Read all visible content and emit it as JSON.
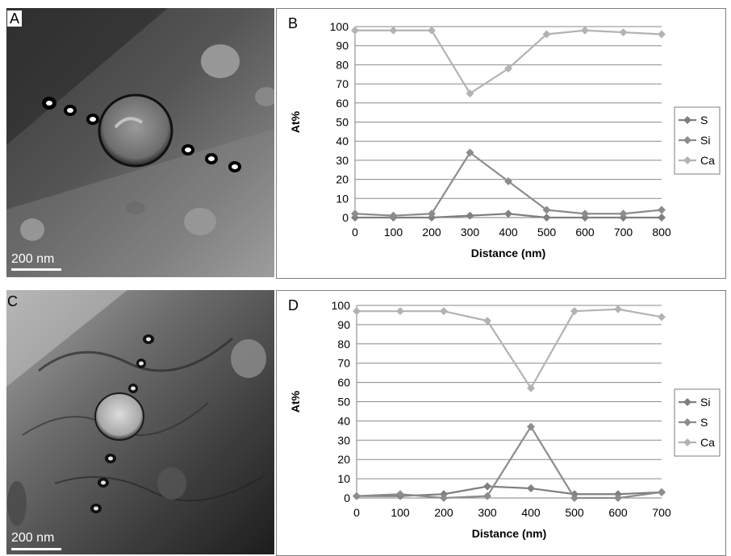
{
  "panels": {
    "a": {
      "label": "A",
      "scale_bar": "200 nm"
    },
    "b": {
      "label": "B"
    },
    "c": {
      "label": "C",
      "scale_bar": "200 nm"
    },
    "d": {
      "label": "D"
    }
  },
  "chart_data": [
    {
      "panel": "B",
      "type": "line",
      "xlabel": "Distance (nm)",
      "ylabel": "At%",
      "x": [
        0,
        100,
        200,
        300,
        400,
        500,
        600,
        700,
        800
      ],
      "xlim": [
        0,
        800
      ],
      "ylim": [
        0,
        100
      ],
      "yticks": [
        0,
        10,
        20,
        30,
        40,
        50,
        60,
        70,
        80,
        90,
        100
      ],
      "grid": true,
      "legend_position": "right",
      "series": [
        {
          "name": "S",
          "color": "#7f7f7f",
          "values": [
            0,
            0,
            0,
            1,
            2,
            0,
            0,
            0,
            0
          ]
        },
        {
          "name": "Si",
          "color": "#8c8c8c",
          "values": [
            2,
            1,
            2,
            34,
            19,
            4,
            2,
            2,
            4
          ]
        },
        {
          "name": "Ca",
          "color": "#b3b3b3",
          "values": [
            98,
            98,
            98,
            65,
            78,
            96,
            98,
            97,
            96
          ]
        }
      ]
    },
    {
      "panel": "D",
      "type": "line",
      "xlabel": "Distance (nm)",
      "ylabel": "At%",
      "x": [
        0,
        100,
        200,
        300,
        400,
        500,
        600,
        700
      ],
      "xlim": [
        0,
        700
      ],
      "ylim": [
        0,
        100
      ],
      "yticks": [
        0,
        10,
        20,
        30,
        40,
        50,
        60,
        70,
        80,
        90,
        100
      ],
      "grid": true,
      "legend_position": "right",
      "series": [
        {
          "name": "Si",
          "color": "#7f7f7f",
          "values": [
            1,
            1,
            2,
            6,
            5,
            2,
            2,
            3
          ]
        },
        {
          "name": "S",
          "color": "#8c8c8c",
          "values": [
            1,
            2,
            0,
            1,
            37,
            0,
            0,
            3
          ]
        },
        {
          "name": "Ca",
          "color": "#b3b3b3",
          "values": [
            97,
            97,
            97,
            92,
            57,
            97,
            98,
            94
          ]
        }
      ]
    }
  ]
}
